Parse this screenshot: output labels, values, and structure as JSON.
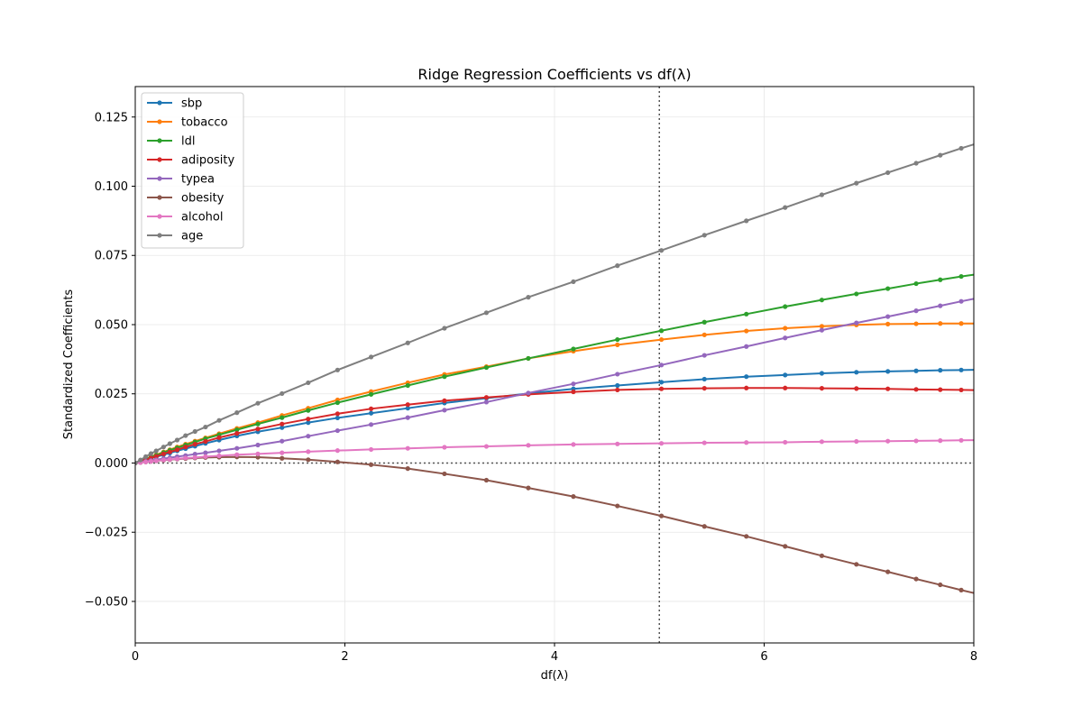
{
  "chart_data": {
    "type": "line",
    "title": "Ridge Regression Coefficients vs df(λ)",
    "xlabel": "df(λ)",
    "ylabel": "Standardized Coefficients",
    "xlim": [
      0,
      8
    ],
    "ylim": [
      -0.065,
      0.136
    ],
    "xticks": [
      0,
      2,
      4,
      6,
      8
    ],
    "xtick_labels": [
      "0",
      "2",
      "4",
      "6",
      "8"
    ],
    "yticks": [
      -0.05,
      -0.025,
      0.0,
      0.025,
      0.05,
      0.075,
      0.1,
      0.125
    ],
    "ytick_labels": [
      "−0.050",
      "−0.025",
      "0.000",
      "0.025",
      "0.050",
      "0.075",
      "0.100",
      "0.125"
    ],
    "grid": true,
    "legend_position": "top-left",
    "reference_lines": {
      "vertical_x": 5,
      "horizontal_y": 0
    },
    "x": [
      0.0,
      0.05,
      0.1,
      0.15,
      0.2,
      0.27,
      0.33,
      0.4,
      0.48,
      0.57,
      0.67,
      0.8,
      0.97,
      1.17,
      1.4,
      1.65,
      1.93,
      2.25,
      2.6,
      2.95,
      3.35,
      3.75,
      4.18,
      4.6,
      5.02,
      5.43,
      5.83,
      6.2,
      6.55,
      6.88,
      7.18,
      7.45,
      7.68,
      7.88,
      8.05
    ],
    "series": [
      {
        "name": "sbp",
        "color": "#1f77b4",
        "values": [
          0.0,
          0.0006,
          0.0011,
          0.0017,
          0.0022,
          0.003,
          0.0036,
          0.0044,
          0.0052,
          0.0061,
          0.0071,
          0.0083,
          0.0098,
          0.0113,
          0.0128,
          0.0146,
          0.0163,
          0.018,
          0.0198,
          0.0217,
          0.0234,
          0.0251,
          0.0268,
          0.028,
          0.0292,
          0.0303,
          0.0312,
          0.0318,
          0.0324,
          0.0328,
          0.0331,
          0.0333,
          0.0335,
          0.0336,
          0.0337
        ]
      },
      {
        "name": "tobacco",
        "color": "#ff7f0e",
        "values": [
          0.0,
          0.0008,
          0.0015,
          0.0022,
          0.003,
          0.004,
          0.0048,
          0.0058,
          0.0068,
          0.0079,
          0.0091,
          0.0106,
          0.0125,
          0.0146,
          0.0172,
          0.0198,
          0.0228,
          0.0258,
          0.029,
          0.032,
          0.0348,
          0.0378,
          0.0404,
          0.0427,
          0.0446,
          0.0463,
          0.0477,
          0.0487,
          0.0494,
          0.0499,
          0.0502,
          0.0503,
          0.0504,
          0.0504,
          0.0504
        ]
      },
      {
        "name": "ldl",
        "color": "#2ca02c",
        "values": [
          0.0,
          0.0007,
          0.0014,
          0.0021,
          0.0028,
          0.0038,
          0.0046,
          0.0055,
          0.0065,
          0.0076,
          0.0088,
          0.0102,
          0.012,
          0.0141,
          0.0164,
          0.019,
          0.0218,
          0.0248,
          0.028,
          0.0312,
          0.0345,
          0.0378,
          0.0412,
          0.0446,
          0.0478,
          0.0509,
          0.0538,
          0.0565,
          0.0589,
          0.0611,
          0.063,
          0.0648,
          0.0662,
          0.0674,
          0.0683
        ]
      },
      {
        "name": "adiposity",
        "color": "#d62728",
        "values": [
          0.0,
          0.0006,
          0.0012,
          0.0018,
          0.0024,
          0.0033,
          0.004,
          0.0048,
          0.0058,
          0.0068,
          0.0078,
          0.0092,
          0.0107,
          0.0123,
          0.0141,
          0.0159,
          0.0178,
          0.0196,
          0.0211,
          0.0225,
          0.0237,
          0.0248,
          0.0257,
          0.0264,
          0.0268,
          0.027,
          0.0271,
          0.0271,
          0.027,
          0.0269,
          0.0268,
          0.0266,
          0.0265,
          0.0264,
          0.0263
        ]
      },
      {
        "name": "typea",
        "color": "#9467bd",
        "values": [
          0.0,
          0.0003,
          0.0006,
          0.0009,
          0.0012,
          0.0016,
          0.0019,
          0.0023,
          0.0027,
          0.0032,
          0.0037,
          0.0044,
          0.0053,
          0.0065,
          0.0079,
          0.0097,
          0.0117,
          0.0139,
          0.0164,
          0.0191,
          0.022,
          0.0253,
          0.0286,
          0.0321,
          0.0354,
          0.0389,
          0.0421,
          0.0452,
          0.048,
          0.0506,
          0.0529,
          0.055,
          0.0568,
          0.0584,
          0.0597
        ]
      },
      {
        "name": "obesity",
        "color": "#8c564b",
        "values": [
          0.0,
          0.0002,
          0.0004,
          0.0006,
          0.0008,
          0.001,
          0.0012,
          0.0014,
          0.0016,
          0.0018,
          0.002,
          0.0021,
          0.0022,
          0.0021,
          0.0017,
          0.0012,
          0.0004,
          -0.0006,
          -0.002,
          -0.0039,
          -0.0062,
          -0.009,
          -0.0121,
          -0.0155,
          -0.0191,
          -0.0229,
          -0.0265,
          -0.0301,
          -0.0335,
          -0.0366,
          -0.0393,
          -0.0419,
          -0.044,
          -0.0459,
          -0.0474
        ]
      },
      {
        "name": "alcohol",
        "color": "#e377c2",
        "values": [
          0.0,
          0.0002,
          0.0004,
          0.0006,
          0.0008,
          0.0011,
          0.0013,
          0.0015,
          0.0018,
          0.002,
          0.0023,
          0.0026,
          0.003,
          0.0033,
          0.0037,
          0.0041,
          0.0045,
          0.0049,
          0.0053,
          0.0057,
          0.006,
          0.0064,
          0.0067,
          0.0069,
          0.0071,
          0.0073,
          0.0074,
          0.0075,
          0.0077,
          0.0078,
          0.0079,
          0.008,
          0.0081,
          0.0082,
          0.0083
        ]
      },
      {
        "name": "age",
        "color": "#7f7f7f",
        "values": [
          0.0,
          0.0011,
          0.0023,
          0.0034,
          0.0044,
          0.0058,
          0.007,
          0.0083,
          0.0099,
          0.0114,
          0.013,
          0.0154,
          0.0182,
          0.0216,
          0.0251,
          0.029,
          0.0336,
          0.0383,
          0.0434,
          0.0487,
          0.0543,
          0.0599,
          0.0655,
          0.0713,
          0.0768,
          0.0823,
          0.0875,
          0.0923,
          0.0969,
          0.1011,
          0.1049,
          0.1083,
          0.1112,
          0.1137,
          0.1157
        ]
      }
    ]
  }
}
